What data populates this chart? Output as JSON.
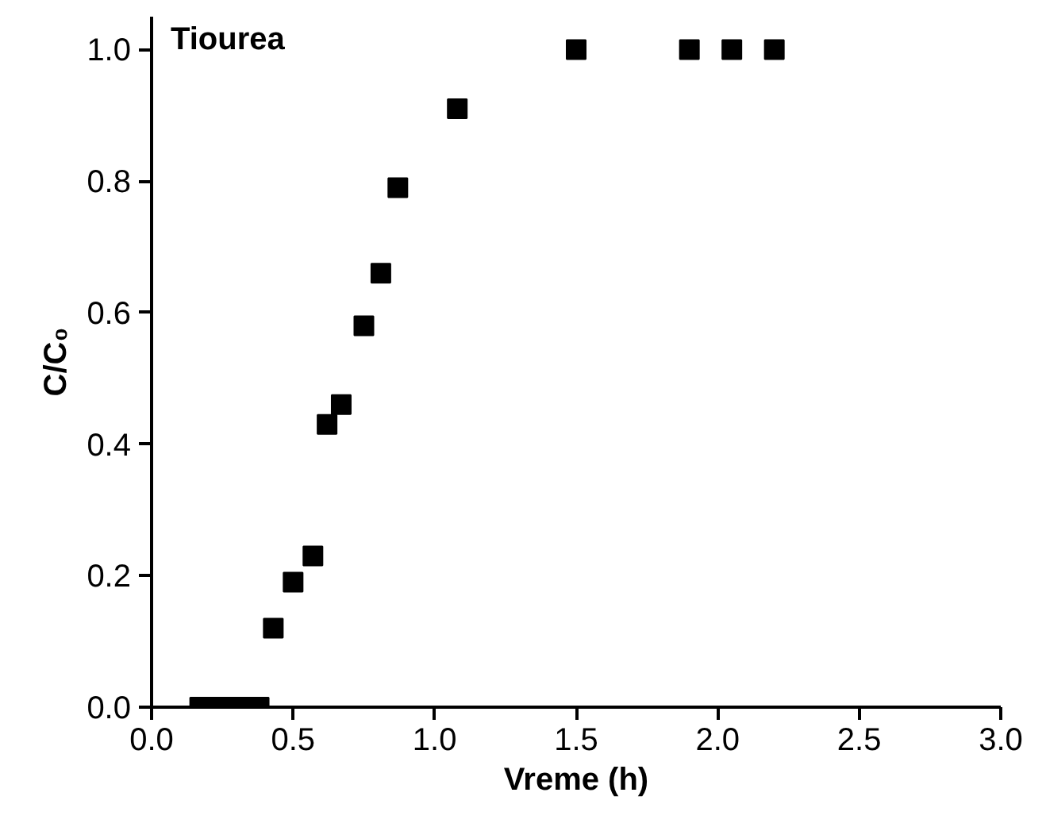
{
  "chart_data": {
    "type": "scatter",
    "xlabel": "Vreme (h)",
    "ylabel": "C/C₀",
    "annotations": [
      "Tiourea"
    ],
    "x": [
      0.17,
      0.22,
      0.28,
      0.33,
      0.38,
      0.43,
      0.5,
      0.57,
      0.62,
      0.67,
      0.75,
      0.81,
      0.87,
      1.08,
      1.5,
      1.9,
      2.05,
      2.2
    ],
    "series": [
      {
        "color": "#000000",
        "values": [
          0,
          0,
          0,
          0,
          0,
          0.12,
          0.19,
          0.23,
          0.43,
          0.46,
          0.58,
          0.66,
          0.79,
          0.91,
          1.0,
          1.0,
          1.0,
          1.0
        ]
      }
    ],
    "xlim": [
      0,
      3.0
    ],
    "ylim": [
      0,
      1.05
    ],
    "xticks": [
      {
        "value": 0,
        "label": "0.0"
      },
      0.5,
      {
        "value": 1,
        "label": "1.0"
      },
      1.5,
      {
        "value": 2,
        "label": "2.0"
      },
      2.5,
      {
        "value": 3,
        "label": "3.0"
      }
    ],
    "yticks": [
      {
        "value": 0,
        "label": "0.0"
      },
      0.2,
      0.4,
      0.6,
      0.8,
      {
        "value": 1,
        "label": "1.0"
      }
    ],
    "marker": "square",
    "grid": false
  }
}
